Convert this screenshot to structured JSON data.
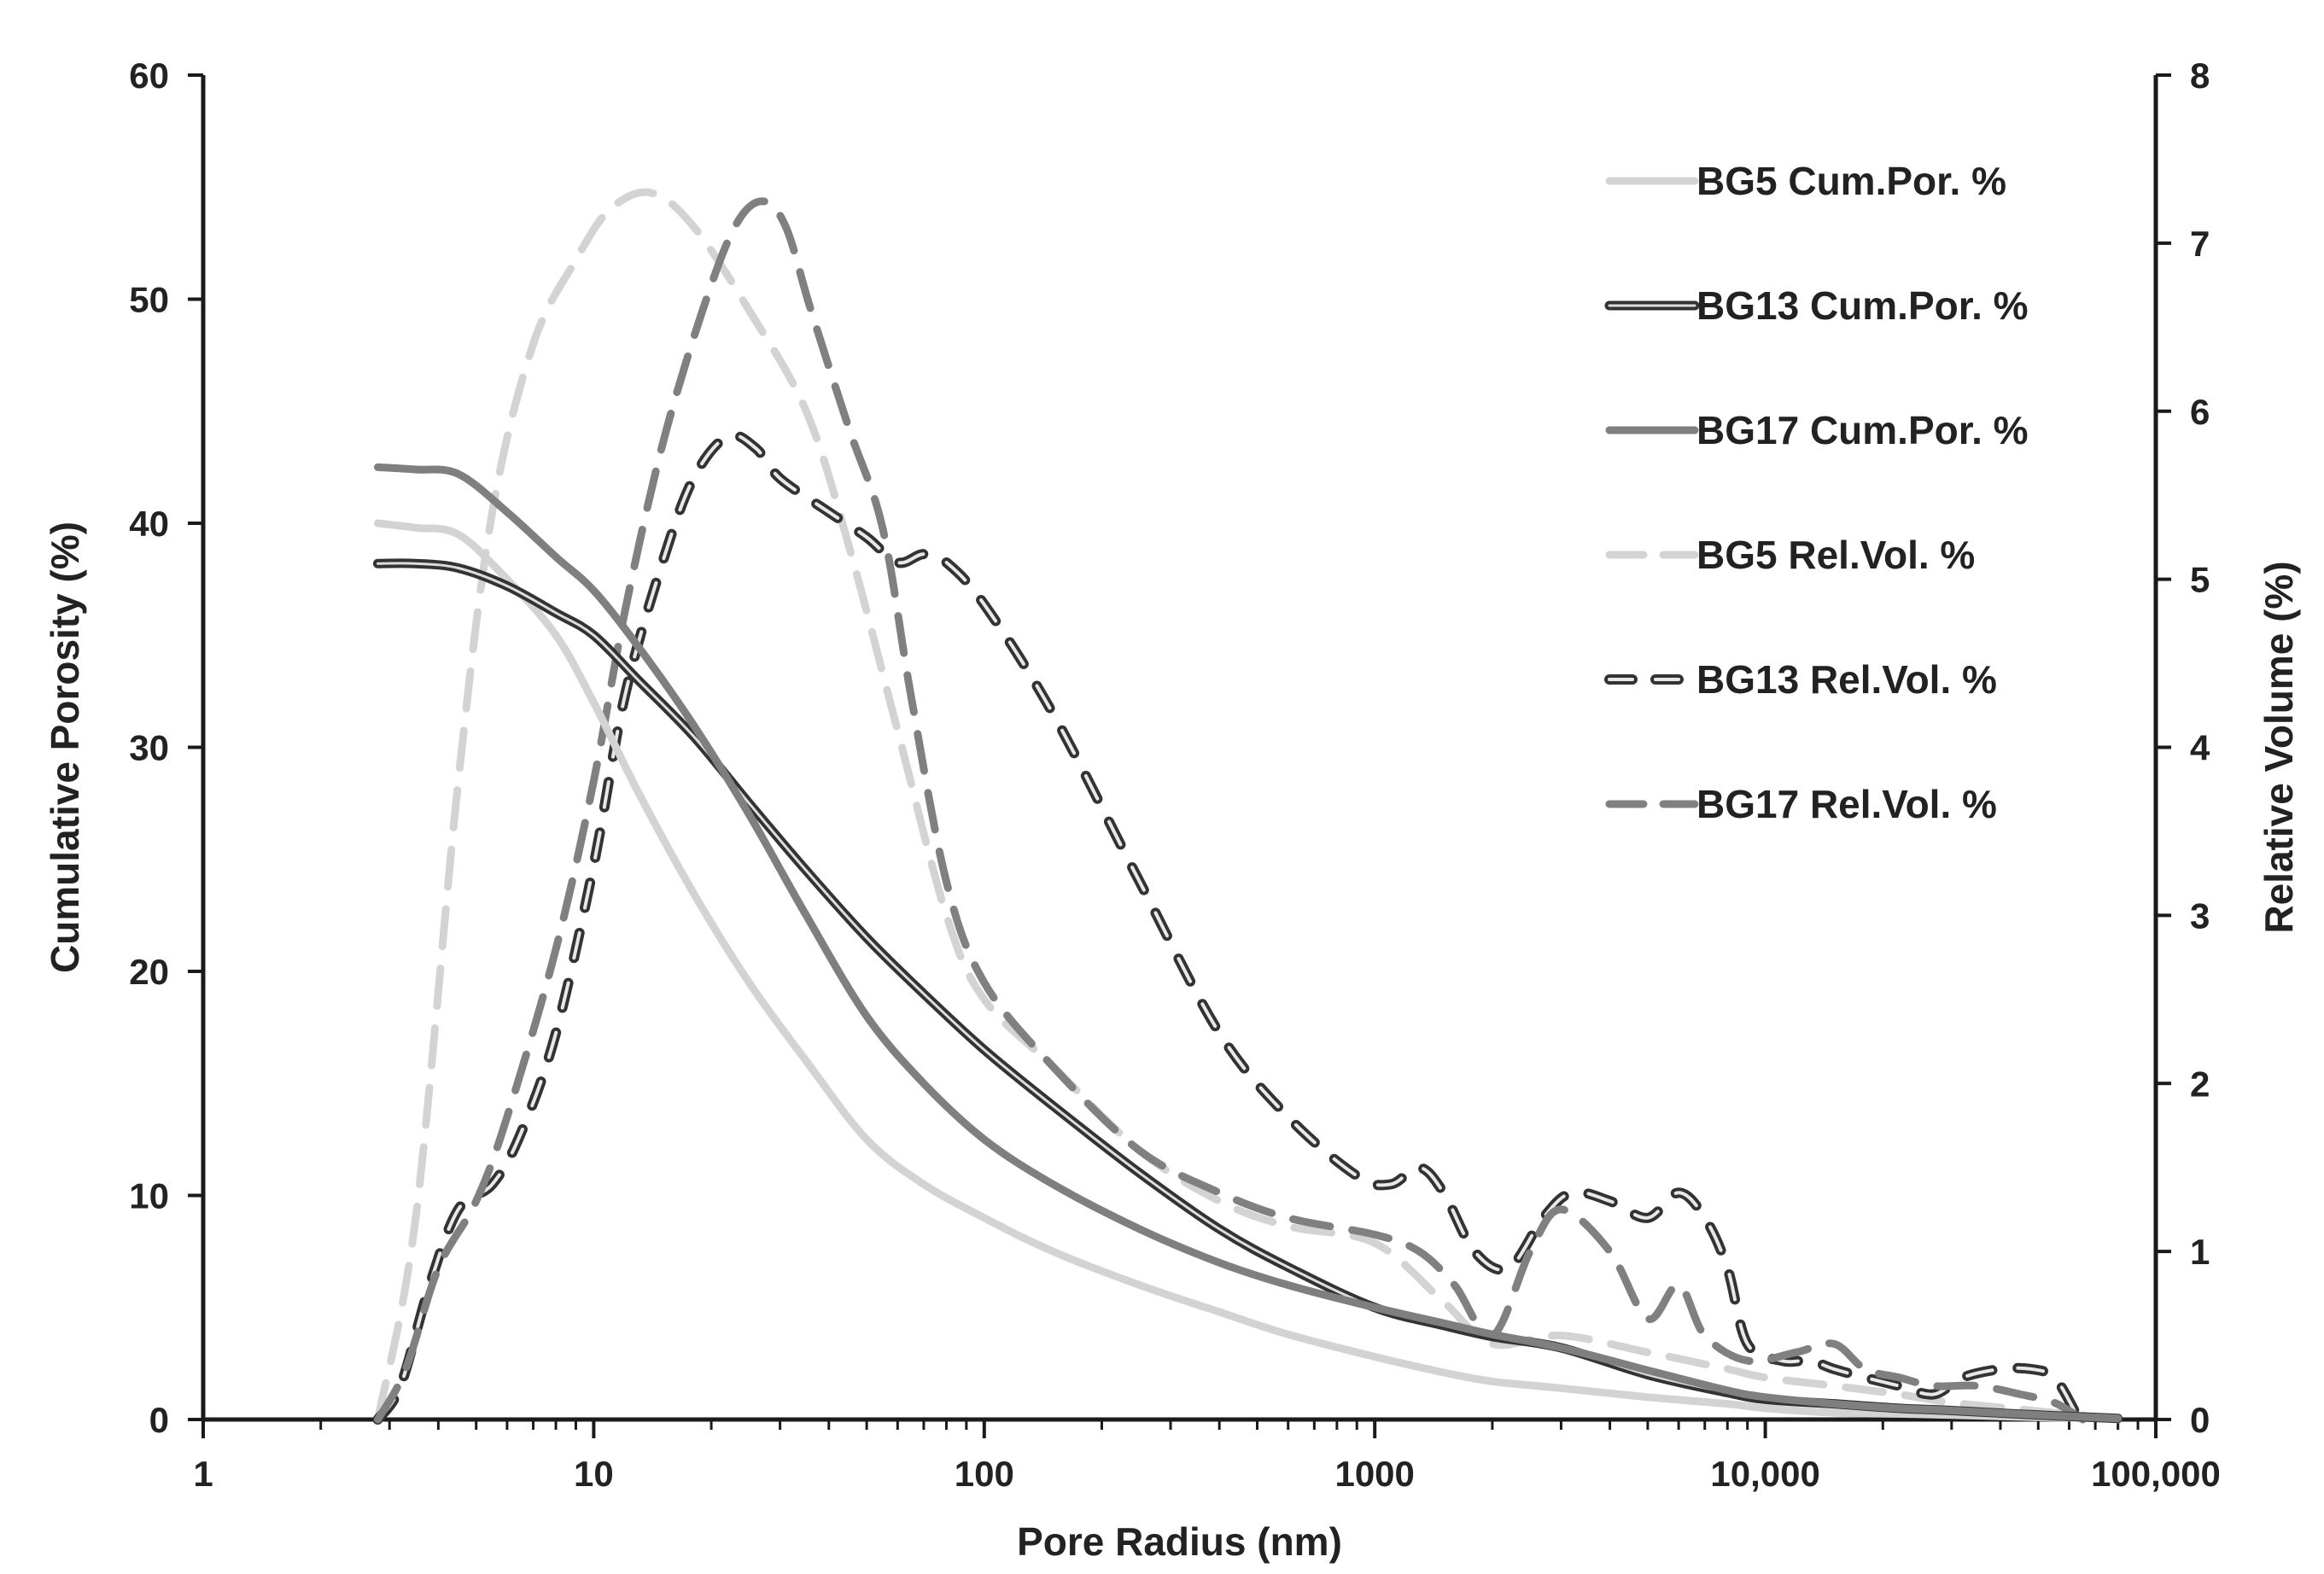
{
  "chart_data": {
    "type": "line",
    "title": "",
    "xlabel": "Pore Radius (nm)",
    "ylabel": "Cumulative Porosity (%)",
    "y2label": "Relative Volume (%)",
    "xscale": "log",
    "xlim": [
      1,
      100000
    ],
    "ylim": [
      0,
      60
    ],
    "y2lim": [
      0,
      8
    ],
    "x_ticks": [
      1,
      10,
      100,
      1000,
      10000,
      100000
    ],
    "x_tick_labels": [
      "1",
      "10",
      "100",
      "1000",
      "10,000",
      "100,000"
    ],
    "y_ticks": [
      0,
      10,
      20,
      30,
      40,
      50,
      60
    ],
    "y_tick_labels": [
      "0",
      "10",
      "20",
      "30",
      "40",
      "50",
      "60"
    ],
    "y2_ticks": [
      0,
      1,
      2,
      3,
      4,
      5,
      6,
      7,
      8
    ],
    "y2_tick_labels": [
      "0",
      "1",
      "2",
      "3",
      "4",
      "5",
      "6",
      "7",
      "8"
    ],
    "grid": false,
    "legend_position": "top-right",
    "series": [
      {
        "name": "BG5 Cum.Por. %",
        "axis": "left",
        "style": "solid",
        "color": "#d3d3d3",
        "x": [
          2.8,
          3.5,
          4.5,
          6,
          8,
          10,
          13,
          18,
          25,
          35,
          50,
          70,
          100,
          150,
          250,
          400,
          600,
          1000,
          1500,
          2000,
          3000,
          5000,
          8000,
          10000,
          15000,
          22000,
          30000,
          50000,
          80000
        ],
        "y": [
          40,
          39.8,
          39.5,
          37.5,
          35,
          32,
          28,
          23.5,
          19.5,
          16,
          12.5,
          10.5,
          9,
          7.5,
          6,
          4.8,
          3.8,
          2.8,
          2.1,
          1.7,
          1.4,
          1,
          0.7,
          0.5,
          0.3,
          0.25,
          0.2,
          0.1,
          0.05
        ]
      },
      {
        "name": "BG13 Cum.Por. %",
        "axis": "left",
        "style": "solid-outlined",
        "color": "#5a5a5a",
        "x": [
          2.8,
          3.5,
          4.5,
          6,
          8,
          10,
          13,
          18,
          25,
          35,
          50,
          70,
          100,
          150,
          250,
          400,
          600,
          1000,
          1500,
          2000,
          3000,
          5000,
          8000,
          10000,
          15000,
          22000,
          30000,
          50000,
          80000
        ],
        "y": [
          38.2,
          38.2,
          38,
          37.2,
          36,
          35,
          33,
          30.5,
          27.5,
          24.5,
          21.5,
          19,
          16.5,
          14,
          11,
          8.5,
          6.8,
          5,
          4.2,
          3.7,
          3.2,
          2,
          1.2,
          0.9,
          0.7,
          0.5,
          0.4,
          0.2,
          0.05
        ]
      },
      {
        "name": "BG17 Cum.Por. %",
        "axis": "left",
        "style": "solid",
        "color": "#7f7f7f",
        "x": [
          2.8,
          3.5,
          4.5,
          6,
          8,
          10,
          13,
          18,
          25,
          35,
          50,
          70,
          100,
          150,
          250,
          400,
          600,
          1000,
          1500,
          2000,
          3000,
          5000,
          8000,
          10000,
          15000,
          22000,
          30000,
          50000,
          80000
        ],
        "y": [
          42.5,
          42.4,
          42.2,
          40.5,
          38.5,
          37,
          34.5,
          31,
          27,
          22.5,
          18,
          15,
          12.5,
          10.5,
          8.5,
          7,
          6,
          5,
          4.3,
          3.8,
          3.2,
          2.2,
          1.3,
          1,
          0.7,
          0.5,
          0.4,
          0.2,
          0.05
        ]
      },
      {
        "name": "BG5 Rel.Vol. %",
        "axis": "right",
        "style": "dashed",
        "color": "#d3d3d3",
        "x": [
          2.8,
          3.5,
          4.5,
          5.5,
          7,
          9,
          11,
          14,
          18,
          25,
          35,
          45,
          60,
          80,
          100,
          150,
          250,
          400,
          600,
          1000,
          1500,
          2000,
          3000,
          5000,
          8000,
          10000,
          15000,
          22000,
          30000,
          50000,
          80000
        ],
        "y": [
          0,
          1.2,
          3.8,
          5.4,
          6.4,
          6.9,
          7.2,
          7.3,
          7.1,
          6.6,
          6.0,
          5.2,
          4.1,
          3.0,
          2.5,
          2.1,
          1.6,
          1.3,
          1.15,
          1.05,
          0.7,
          0.45,
          0.5,
          0.4,
          0.3,
          0.25,
          0.2,
          0.15,
          0.1,
          0.05,
          0
        ]
      },
      {
        "name": "BG13 Rel.Vol. %",
        "axis": "right",
        "style": "dashed-outlined",
        "color": "#555555",
        "x": [
          2.8,
          3.2,
          3.8,
          4.5,
          5.5,
          6.5,
          8,
          10,
          12,
          15,
          18,
          22,
          26,
          30,
          40,
          50,
          60,
          70,
          80,
          100,
          150,
          250,
          400,
          600,
          900,
          1100,
          1300,
          1500,
          1800,
          2200,
          2700,
          3200,
          4000,
          5000,
          6000,
          7000,
          8000,
          9000,
          11000,
          13000,
          15000,
          18000,
          22000,
          27000,
          32000,
          40000,
          48000,
          55000,
          62000
        ],
        "y": [
          0,
          0.2,
          0.8,
          1.25,
          1.4,
          1.7,
          2.3,
          3.3,
          4.3,
          5.1,
          5.6,
          5.85,
          5.78,
          5.6,
          5.4,
          5.25,
          5.1,
          5.15,
          5.1,
          4.85,
          4.2,
          3.2,
          2.3,
          1.8,
          1.45,
          1.4,
          1.5,
          1.35,
          1.0,
          0.9,
          1.2,
          1.35,
          1.3,
          1.2,
          1.35,
          1.2,
          0.9,
          0.45,
          0.35,
          0.35,
          0.3,
          0.25,
          0.2,
          0.15,
          0.25,
          0.3,
          0.3,
          0.25,
          0.05
        ]
      },
      {
        "name": "BG17 Rel.Vol. %",
        "axis": "right",
        "style": "dashed",
        "color": "#808080",
        "x": [
          2.8,
          3.3,
          4,
          5,
          6,
          8,
          10,
          12,
          15,
          19,
          23,
          27,
          31,
          36,
          45,
          55,
          65,
          80,
          100,
          150,
          250,
          400,
          600,
          1000,
          1300,
          1600,
          2000,
          2500,
          3000,
          4000,
          5000,
          6000,
          7000,
          9000,
          12000,
          15000,
          18000,
          22000,
          27000,
          35000,
          45000,
          55000,
          65000
        ],
        "y": [
          0,
          0.3,
          0.9,
          1.3,
          1.8,
          2.8,
          3.8,
          4.8,
          5.8,
          6.6,
          7.1,
          7.25,
          7.1,
          6.6,
          5.9,
          5.3,
          4.3,
          3.2,
          2.6,
          2.1,
          1.6,
          1.35,
          1.2,
          1.1,
          1.0,
          0.8,
          0.5,
          1.0,
          1.25,
          1.0,
          0.6,
          0.8,
          0.5,
          0.35,
          0.4,
          0.45,
          0.3,
          0.25,
          0.2,
          0.2,
          0.15,
          0.1,
          0
        ]
      }
    ]
  }
}
